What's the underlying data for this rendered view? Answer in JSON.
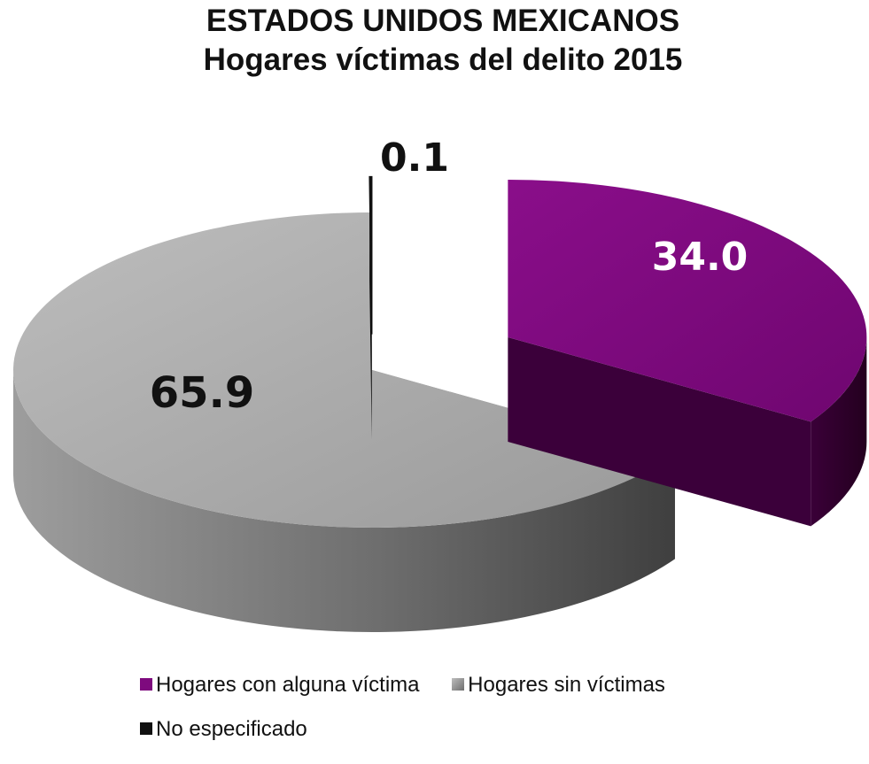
{
  "chart_data": {
    "type": "pie",
    "title": "ESTADOS UNIDOS MEXICANOS",
    "subtitle": "Hogares víctimas del delito 2015",
    "categories": [
      "Hogares con alguna víctima",
      "Hogares sin víctimas",
      "No especificado"
    ],
    "values": [
      34.0,
      65.9,
      0.1
    ],
    "labels": [
      "34.0",
      "65.9",
      "0.1"
    ],
    "colors": [
      "#7e0a7e",
      "#a9a9a9",
      "#111111"
    ],
    "style": "3d-exploded",
    "legend_position": "bottom"
  }
}
